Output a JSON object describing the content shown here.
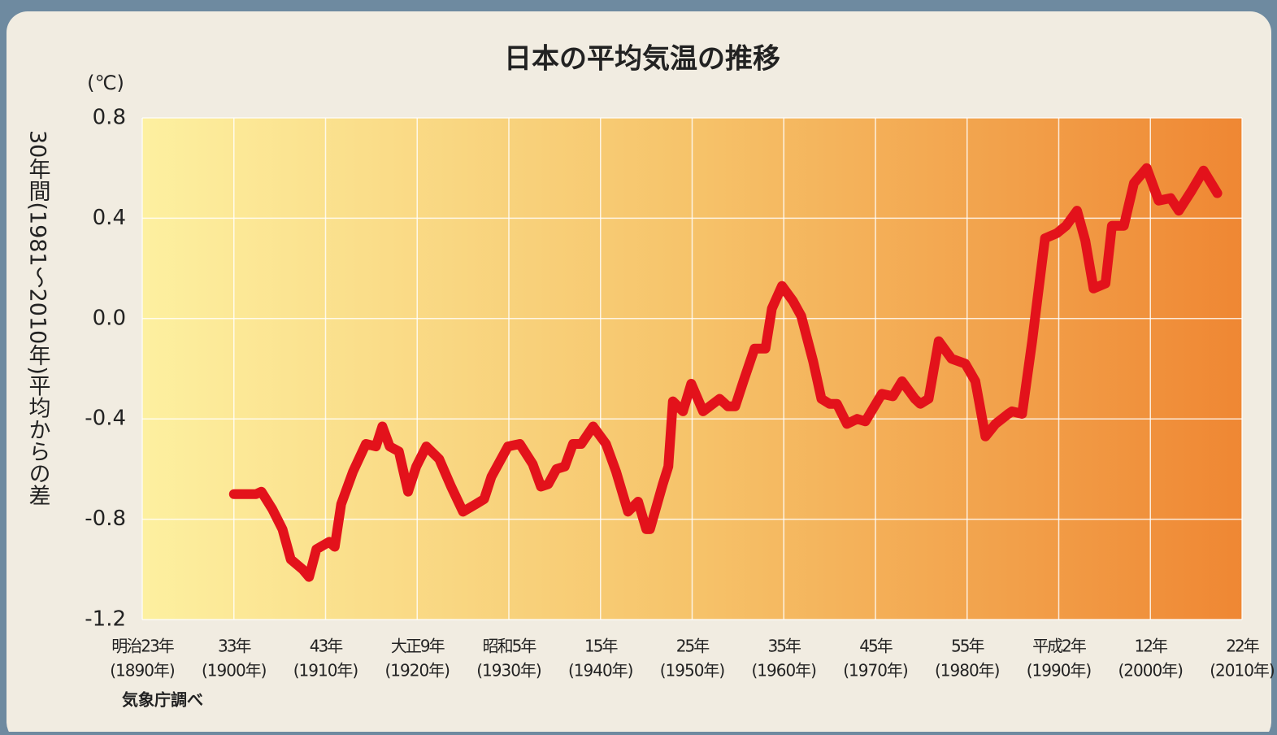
{
  "chart_data": {
    "type": "line",
    "title": "日本の平均気温の推移",
    "y_unit": "(℃)",
    "y_label": "30年間(1981～2010年)平均からの差",
    "source": "気象庁調べ",
    "color": "#e3121b",
    "grid": true,
    "x": [
      1900,
      1901,
      1902.4,
      1903,
      1904.2,
      1905.3,
      1906.2,
      1907.5,
      1908.2,
      1909,
      1910.4,
      1911,
      1911.7,
      1913,
      1914.4,
      1915.5,
      1916.2,
      1917,
      1918,
      1919,
      1919.9,
      1921,
      1922.4,
      1923.7,
      1925,
      1926.4,
      1927.3,
      1928.1,
      1929.9,
      1931.2,
      1932.6,
      1933.5,
      1934.3,
      1935.2,
      1936.1,
      1937,
      1937.9,
      1939.2,
      1940.6,
      1941.7,
      1943,
      1944.1,
      1945,
      1945.4,
      1946.8,
      1947.4,
      1947.9,
      1949,
      1949.9,
      1951.2,
      1953,
      1953.9,
      1954.7,
      1955.6,
      1956.8,
      1958,
      1958.7,
      1959.8,
      1961,
      1961.9,
      1963.2,
      1964.1,
      1965,
      1965.8,
      1966.9,
      1968,
      1968.9,
      1970.7,
      1971.9,
      1972.9,
      1974.3,
      1974.9,
      1975.8,
      1976.9,
      1978.3,
      1979.8,
      1980.9,
      1982,
      1983.1,
      1984.5,
      1984.9,
      1986,
      1987.1,
      1988.5,
      1989.8,
      1990.8,
      1992,
      1992.9,
      1993.8,
      1995.1,
      1995.8,
      1997.1,
      1998.2,
      1999.6,
      2000.9,
      2002.2,
      2003.1,
      2004.5,
      2005.8,
      2007.3
    ],
    "values": [
      -0.7,
      -0.7,
      -0.7,
      -0.69,
      -0.76,
      -0.84,
      -0.96,
      -1.0,
      -1.03,
      -0.92,
      -0.89,
      -0.91,
      -0.74,
      -0.61,
      -0.5,
      -0.51,
      -0.43,
      -0.51,
      -0.53,
      -0.69,
      -0.59,
      -0.51,
      -0.56,
      -0.67,
      -0.77,
      -0.74,
      -0.72,
      -0.63,
      -0.51,
      -0.5,
      -0.58,
      -0.67,
      -0.66,
      -0.6,
      -0.59,
      -0.5,
      -0.5,
      -0.43,
      -0.5,
      -0.61,
      -0.77,
      -0.73,
      -0.84,
      -0.84,
      -0.66,
      -0.59,
      -0.33,
      -0.37,
      -0.26,
      -0.37,
      -0.32,
      -0.35,
      -0.35,
      -0.25,
      -0.12,
      -0.12,
      0.04,
      0.13,
      0.07,
      0.01,
      -0.17,
      -0.32,
      -0.34,
      -0.34,
      -0.42,
      -0.4,
      -0.41,
      -0.3,
      -0.31,
      -0.25,
      -0.32,
      -0.34,
      -0.32,
      -0.09,
      -0.16,
      -0.18,
      -0.25,
      -0.47,
      -0.42,
      -0.38,
      -0.37,
      -0.38,
      -0.09,
      0.32,
      0.34,
      0.37,
      0.43,
      0.31,
      0.12,
      0.14,
      0.37,
      0.37,
      0.54,
      0.6,
      0.47,
      0.48,
      0.43,
      0.51,
      0.59,
      0.5
    ],
    "xlim": [
      1890,
      2010
    ],
    "xticks": [
      {
        "value": 1890,
        "label": "(1890年)"
      },
      {
        "value": 1900,
        "label": "(1900年)"
      },
      {
        "value": 1910,
        "label": "(1910年)"
      },
      {
        "value": 1920,
        "label": "(1920年)"
      },
      {
        "value": 1930,
        "label": "(1930年)"
      },
      {
        "value": 1940,
        "label": "(1940年)"
      },
      {
        "value": 1950,
        "label": "(1950年)"
      },
      {
        "value": 1960,
        "label": "(1960年)"
      },
      {
        "value": 1970,
        "label": "(1970年)"
      },
      {
        "value": 1980,
        "label": "(1980年)"
      },
      {
        "value": 1990,
        "label": "(1990年)"
      },
      {
        "value": 2000,
        "label": "(2000年)"
      },
      {
        "value": 2010,
        "label": "(2010年)"
      }
    ],
    "xtick_era_labels": [
      "明治23年",
      "33年",
      "43年",
      "大正9年",
      "昭和5年",
      "15年",
      "25年",
      "35年",
      "45年",
      "55年",
      "平成2年",
      "12年",
      "22年"
    ],
    "ylim": [
      -1.2,
      0.8
    ],
    "yticks": [
      0.8,
      0.4,
      {
        "value": 0,
        "label": "0.0"
      },
      -0.4,
      -0.8,
      -1.2
    ]
  }
}
